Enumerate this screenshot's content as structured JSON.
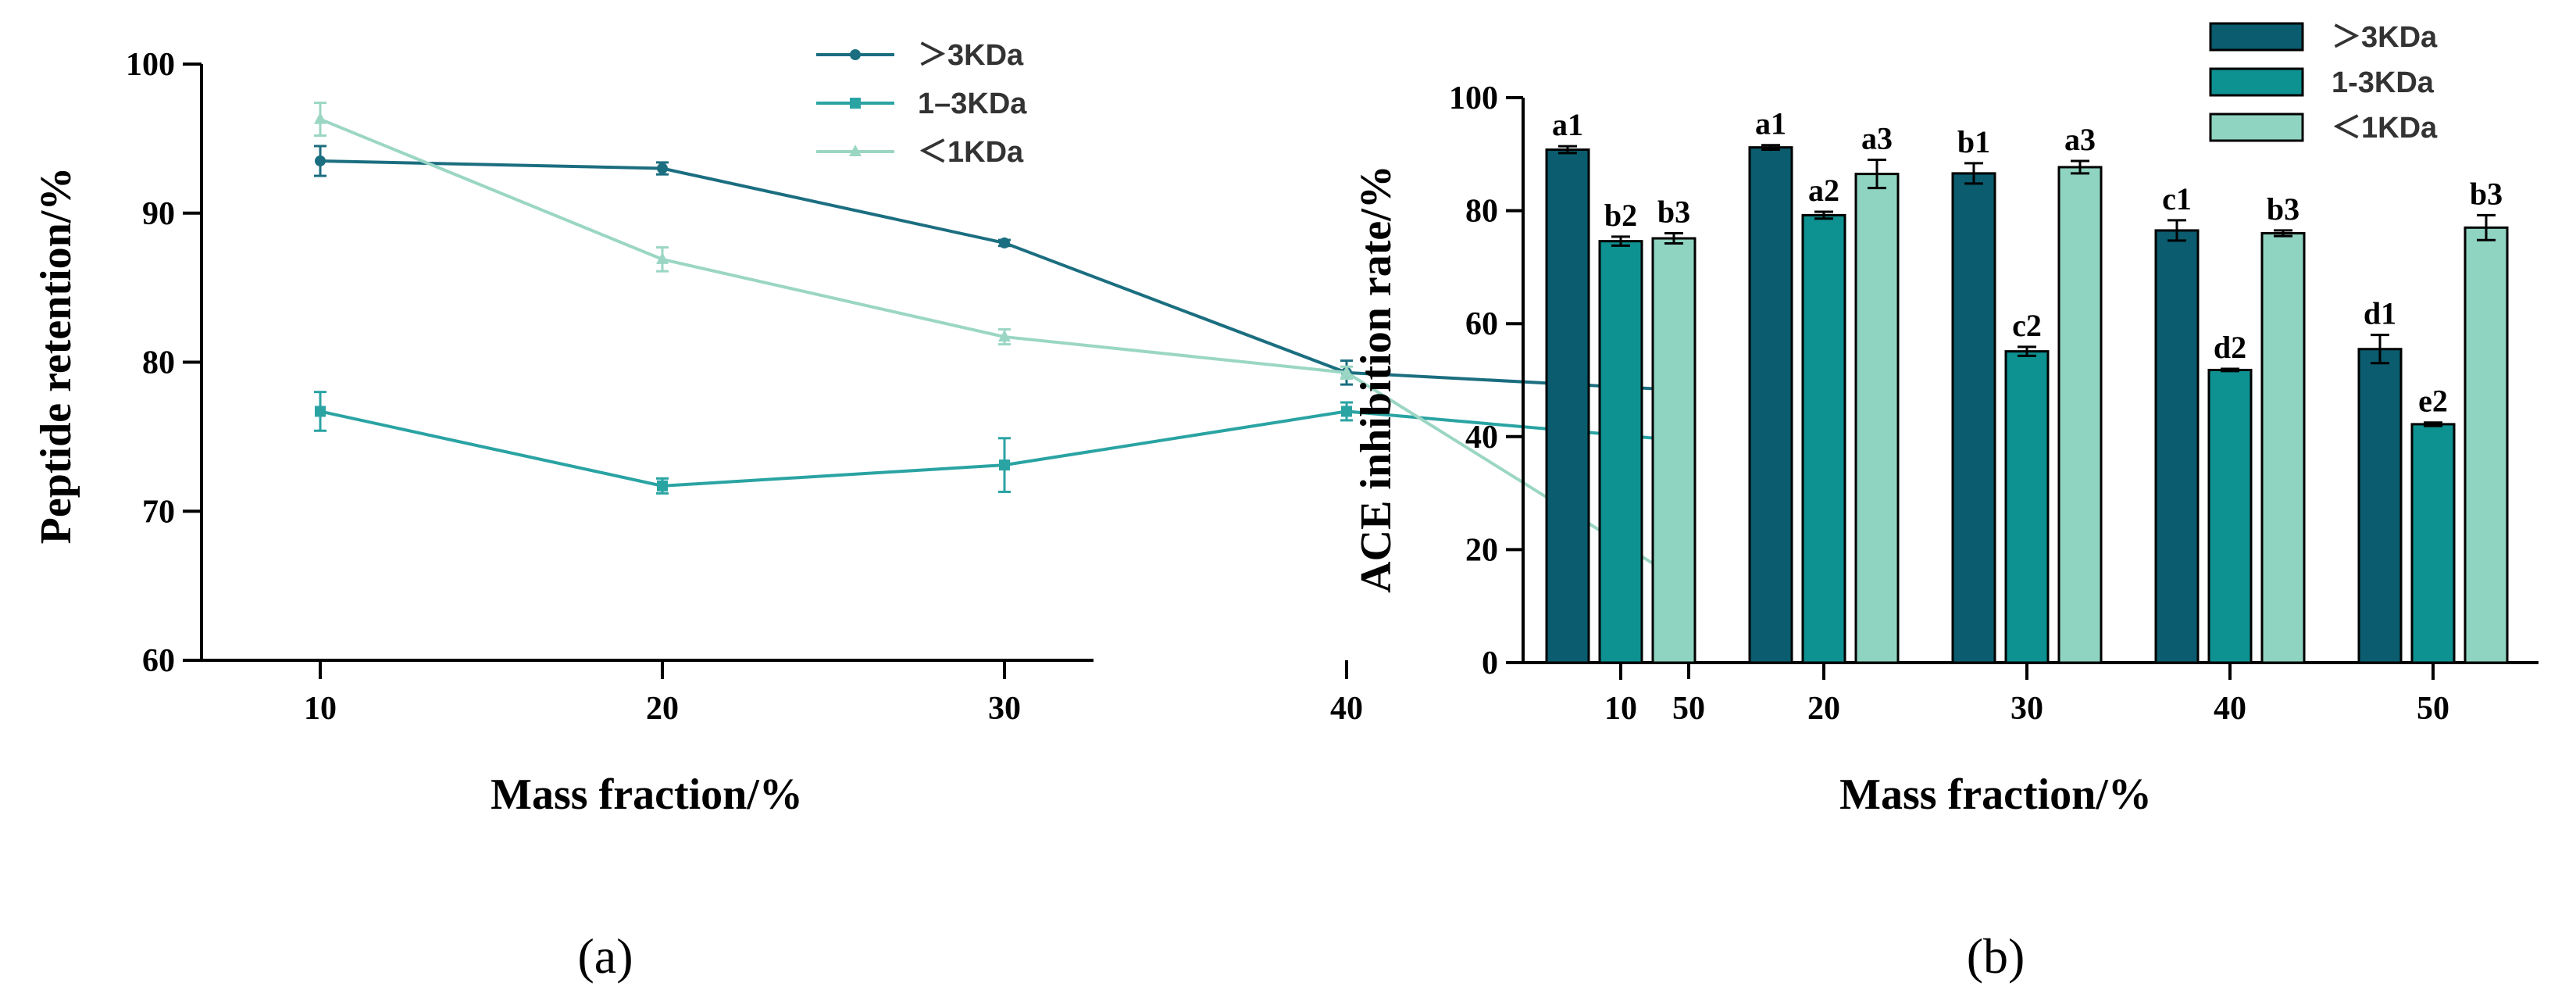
{
  "chart_data": [
    {
      "id": "a",
      "type": "line",
      "panel_label": "(a)",
      "xlabel": "Mass fraction/%",
      "ylabel": "Peptide retention/%",
      "x": [
        10,
        20,
        30,
        40,
        50
      ],
      "ylim": [
        60,
        100
      ],
      "yticks": [
        60,
        70,
        80,
        90,
        100
      ],
      "legend_position": "top-right",
      "series": [
        {
          "name": "＞3KDa",
          "color": "#1b6e80",
          "marker": "circle",
          "values": [
            93.5,
            93.0,
            88.0,
            79.3,
            78.1
          ],
          "errors": [
            1.0,
            0.4,
            0.2,
            0.8,
            0.2
          ]
        },
        {
          "name": "1–3KDa",
          "color": "#2aa3a3",
          "marker": "square",
          "values": [
            76.7,
            71.7,
            73.1,
            76.7,
            74.7
          ],
          "errors": [
            1.3,
            0.5,
            1.8,
            0.6,
            0.7
          ]
        },
        {
          "name": "＜1KDa",
          "color": "#9bd6c4",
          "marker": "triangle",
          "values": [
            96.3,
            86.9,
            81.7,
            79.3,
            65.0
          ],
          "errors": [
            1.1,
            0.8,
            0.5,
            0.4,
            0.9
          ]
        }
      ]
    },
    {
      "id": "b",
      "type": "bar",
      "panel_label": "(b)",
      "xlabel": "Mass fraction/%",
      "ylabel": "ACE inhibition rate/%",
      "categories": [
        "10",
        "20",
        "30",
        "40",
        "50"
      ],
      "ylim": [
        0,
        100
      ],
      "yticks": [
        0,
        20,
        40,
        60,
        80,
        100
      ],
      "legend_position": "top-right",
      "series": [
        {
          "name": "＞3KDa",
          "color": "#0a5c6e",
          "values": [
            90.8,
            91.2,
            86.6,
            76.5,
            55.5
          ],
          "errors": [
            0.6,
            0.4,
            1.8,
            1.8,
            2.5
          ],
          "labels": [
            "a1",
            "a1",
            "b1",
            "c1",
            "d1"
          ]
        },
        {
          "name": "1-3KDa",
          "color": "#0e9191",
          "values": [
            74.6,
            79.2,
            55.1,
            51.8,
            42.2
          ],
          "errors": [
            0.8,
            0.6,
            0.8,
            0.2,
            0.3
          ],
          "labels": [
            "b2",
            "a2",
            "c2",
            "d2",
            "e2"
          ]
        },
        {
          "name": "＜1KDa",
          "color": "#8fd4c1",
          "values": [
            75.1,
            86.5,
            87.7,
            76.0,
            77.0
          ],
          "errors": [
            0.9,
            2.5,
            1.1,
            0.5,
            2.2
          ],
          "labels": [
            "b3",
            "a3",
            "a3",
            "b3",
            "b3"
          ]
        }
      ]
    }
  ]
}
